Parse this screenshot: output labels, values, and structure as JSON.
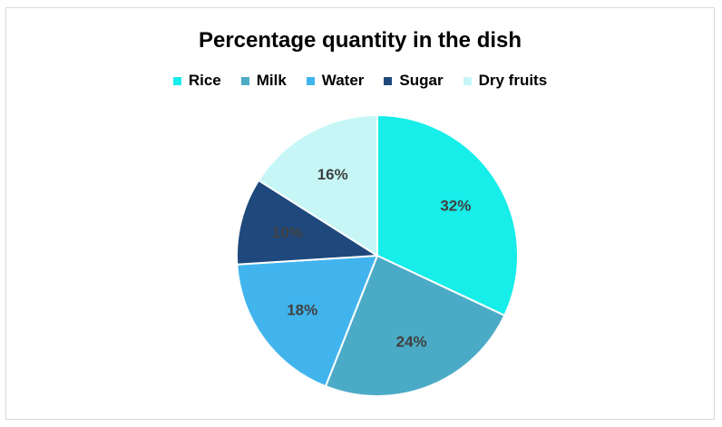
{
  "chart_data": {
    "type": "pie",
    "title": "Percentage quantity in the dish",
    "legend_position": "top",
    "categories": [
      "Rice",
      "Milk",
      "Water",
      "Sugar",
      "Dry fruits"
    ],
    "values": [
      32,
      24,
      18,
      10,
      16
    ],
    "labels": [
      "32%",
      "24%",
      "18%",
      "10%",
      "16%"
    ],
    "colors": [
      "#17EDE9",
      "#4BABC6",
      "#41B4EE",
      "#1F497D",
      "#C6F7F6"
    ]
  }
}
